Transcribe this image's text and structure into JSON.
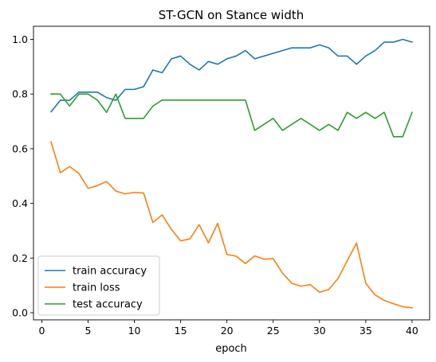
{
  "chart_data": {
    "type": "line",
    "title": "ST-GCN on Stance width",
    "xlabel": "epoch",
    "ylabel": "",
    "xlim": [
      -0.9,
      41.9
    ],
    "ylim": [
      -0.026,
      1.048
    ],
    "xticks": [
      0,
      5,
      10,
      15,
      20,
      25,
      30,
      35,
      40
    ],
    "yticks": [
      0.0,
      0.2,
      0.4,
      0.6,
      0.8,
      1.0
    ],
    "ytick_labels": [
      "0.0",
      "0.2",
      "0.4",
      "0.6",
      "0.8",
      "1.0"
    ],
    "grid": false,
    "legend_position": "lower-left",
    "x": [
      1,
      2,
      3,
      4,
      5,
      6,
      7,
      8,
      9,
      10,
      11,
      12,
      13,
      14,
      15,
      16,
      17,
      18,
      19,
      20,
      21,
      22,
      23,
      24,
      25,
      26,
      27,
      28,
      29,
      30,
      31,
      32,
      33,
      34,
      35,
      36,
      37,
      38,
      39,
      40
    ],
    "series": [
      {
        "name": "train accuracy",
        "color": "#1f77b4",
        "values": [
          0.735,
          0.777,
          0.777,
          0.807,
          0.807,
          0.807,
          0.787,
          0.777,
          0.817,
          0.817,
          0.827,
          0.888,
          0.878,
          0.929,
          0.939,
          0.909,
          0.888,
          0.919,
          0.909,
          0.929,
          0.939,
          0.959,
          0.929,
          0.939,
          0.949,
          0.959,
          0.969,
          0.969,
          0.969,
          0.98,
          0.969,
          0.939,
          0.939,
          0.909,
          0.939,
          0.959,
          0.99,
          0.99,
          1.0,
          0.99
        ]
      },
      {
        "name": "train loss",
        "color": "#ff7f0e",
        "values": [
          0.625,
          0.512,
          0.535,
          0.51,
          0.455,
          0.465,
          0.48,
          0.445,
          0.435,
          0.44,
          0.438,
          0.33,
          0.358,
          0.305,
          0.263,
          0.27,
          0.322,
          0.256,
          0.327,
          0.213,
          0.207,
          0.18,
          0.208,
          0.196,
          0.198,
          0.145,
          0.108,
          0.097,
          0.103,
          0.075,
          0.085,
          0.125,
          0.19,
          0.255,
          0.108,
          0.065,
          0.045,
          0.033,
          0.022,
          0.018
        ]
      },
      {
        "name": "test accuracy",
        "color": "#2ca02c",
        "values": [
          0.8,
          0.8,
          0.756,
          0.8,
          0.8,
          0.778,
          0.733,
          0.8,
          0.711,
          0.711,
          0.711,
          0.756,
          0.778,
          0.778,
          0.778,
          0.778,
          0.778,
          0.778,
          0.778,
          0.778,
          0.778,
          0.778,
          0.667,
          0.689,
          0.711,
          0.667,
          0.689,
          0.711,
          0.689,
          0.667,
          0.689,
          0.667,
          0.733,
          0.711,
          0.733,
          0.711,
          0.733,
          0.644,
          0.644,
          0.733
        ]
      }
    ]
  }
}
